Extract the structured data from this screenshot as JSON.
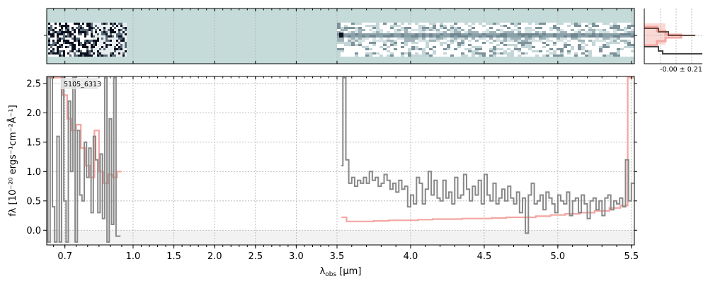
{
  "chart_data": {
    "type": "line",
    "object_label": "5105_6313",
    "xlabel": "λobs [μm]",
    "xlabel_main": "λ",
    "xlabel_sub": "obs",
    "xlabel_unit": " [μm]",
    "ylabel": "fλ [10⁻²⁰ ergs⁻¹cm⁻²Å⁻¹]",
    "xlim": [
      0.62,
      5.52
    ],
    "ylim": [
      -0.25,
      2.62
    ],
    "x_ticks": [
      {
        "value": 0.7,
        "label": "0.7"
      },
      {
        "value": 1.0,
        "label": "1.0"
      },
      {
        "value": 1.5,
        "label": "1.5"
      },
      {
        "value": 2.0,
        "label": "2.0"
      },
      {
        "value": 2.5,
        "label": "2.5"
      },
      {
        "value": 3.0,
        "label": "3.0"
      },
      {
        "value": 3.5,
        "label": "3.5"
      },
      {
        "value": 4.0,
        "label": "4.0"
      },
      {
        "value": 4.5,
        "label": "4.5"
      },
      {
        "value": 5.0,
        "label": "5.0"
      },
      {
        "value": 5.5,
        "label": "5.5"
      }
    ],
    "y_ticks": [
      {
        "value": 0.0,
        "label": "0.0"
      },
      {
        "value": 0.5,
        "label": "0.5"
      },
      {
        "value": 1.0,
        "label": "1.0"
      },
      {
        "value": 1.5,
        "label": "1.5"
      },
      {
        "value": 2.0,
        "label": "2.0"
      },
      {
        "value": 2.5,
        "label": "2.5"
      }
    ],
    "grid": true,
    "series": [
      {
        "color": "#888888",
        "style": "step",
        "segments": [
          {
            "x": [
              0.62,
              0.63,
              0.64,
              0.65,
              0.66,
              0.67,
              0.68,
              0.69,
              0.7,
              0.71,
              0.72,
              0.73,
              0.74,
              0.75,
              0.76,
              0.77,
              0.78,
              0.79,
              0.8,
              0.81,
              0.82,
              0.83,
              0.84,
              0.85,
              0.86,
              0.87,
              0.88,
              0.89,
              0.9,
              0.91,
              0.92,
              0.93,
              0.94
            ],
            "y": [
              2.6,
              -0.2,
              2.6,
              0.4,
              -0.2,
              1.6,
              -0.2,
              2.6,
              0.5,
              -0.2,
              2.2,
              1.0,
              2.6,
              -0.2,
              1.7,
              0.6,
              0.5,
              1.5,
              0.9,
              1.4,
              0.3,
              1.6,
              1.2,
              0.3,
              1.3,
              0.2,
              2.6,
              -0.2,
              1.9,
              0.1,
              2.6,
              -0.1,
              -0.1
            ]
          },
          {
            "x": [
              3.53,
              3.55,
              3.57,
              3.59,
              3.61,
              3.63,
              3.65,
              3.67,
              3.69,
              3.71,
              3.73,
              3.75,
              3.77,
              3.79,
              3.81,
              3.83,
              3.85,
              3.87,
              3.89,
              3.91,
              3.93,
              3.95,
              3.97,
              3.99,
              4.01,
              4.03,
              4.05,
              4.07,
              4.09,
              4.11,
              4.13,
              4.15,
              4.17,
              4.19,
              4.21,
              4.23,
              4.25,
              4.27,
              4.29,
              4.31,
              4.33,
              4.35,
              4.37,
              4.39,
              4.41,
              4.43,
              4.45,
              4.47,
              4.49,
              4.51,
              4.53,
              4.55,
              4.57,
              4.59,
              4.61,
              4.63,
              4.65,
              4.67,
              4.69,
              4.71,
              4.73,
              4.75,
              4.77,
              4.79,
              4.81,
              4.83,
              4.85,
              4.87,
              4.89,
              4.91,
              4.93,
              4.95,
              4.97,
              4.99,
              5.01,
              5.03,
              5.05,
              5.07,
              5.09,
              5.11,
              5.13,
              5.15,
              5.17,
              5.19,
              5.21,
              5.23,
              5.25,
              5.27,
              5.29,
              5.31,
              5.33,
              5.35,
              5.37,
              5.39,
              5.41,
              5.43,
              5.45,
              5.47,
              5.49,
              5.51
            ],
            "y": [
              1.1,
              2.6,
              1.2,
              0.8,
              0.9,
              0.75,
              0.85,
              0.8,
              0.9,
              0.8,
              1.0,
              0.85,
              0.9,
              0.75,
              0.8,
              0.95,
              0.85,
              0.7,
              0.8,
              0.65,
              0.85,
              0.7,
              0.75,
              0.4,
              0.6,
              0.45,
              0.9,
              0.8,
              0.45,
              0.7,
              1.0,
              0.6,
              0.85,
              0.55,
              0.5,
              0.85,
              0.55,
              0.65,
              0.45,
              0.9,
              0.55,
              0.6,
              0.95,
              0.7,
              0.5,
              0.75,
              0.6,
              0.85,
              0.45,
              0.95,
              0.6,
              0.5,
              0.8,
              0.45,
              0.55,
              0.7,
              0.5,
              0.75,
              0.55,
              0.45,
              0.65,
              0.3,
              0.55,
              -0.05,
              0.6,
              0.8,
              0.45,
              0.5,
              0.6,
              0.35,
              0.65,
              0.55,
              0.45,
              0.3,
              0.6,
              0.5,
              0.45,
              0.65,
              0.25,
              0.5,
              0.55,
              0.3,
              0.6,
              0.45,
              0.2,
              0.5,
              0.55,
              0.35,
              0.5,
              0.25,
              0.55,
              0.6,
              0.35,
              0.5,
              0.45,
              0.55,
              0.4,
              1.2,
              0.5,
              0.8
            ]
          }
        ]
      },
      {
        "color": "#f4a6a2",
        "style": "step",
        "segments": [
          {
            "x": [
              0.62,
              0.64,
              0.66,
              0.68,
              0.7,
              0.72,
              0.74,
              0.76,
              0.78,
              0.8,
              0.82,
              0.84,
              0.86,
              0.88,
              0.9,
              0.92,
              0.94
            ],
            "y": [
              2.6,
              2.6,
              2.6,
              2.6,
              2.3,
              1.9,
              1.7,
              1.8,
              1.4,
              1.1,
              0.9,
              1.7,
              1.0,
              0.8,
              0.95,
              0.9,
              1.0
            ]
          },
          {
            "x": [
              3.53,
              3.6,
              3.7,
              3.8,
              3.9,
              4.0,
              4.1,
              4.2,
              4.3,
              4.4,
              4.5,
              4.6,
              4.7,
              4.8,
              4.9,
              5.0,
              5.1,
              5.2,
              5.3,
              5.4,
              5.45,
              5.5,
              5.51
            ],
            "y": [
              0.22,
              0.15,
              0.15,
              0.16,
              0.17,
              0.17,
              0.18,
              0.19,
              0.19,
              0.2,
              0.2,
              0.21,
              0.22,
              0.22,
              0.24,
              0.26,
              0.28,
              0.3,
              0.33,
              0.38,
              0.42,
              2.6,
              2.6
            ]
          }
        ]
      }
    ],
    "side_panel": {
      "label": "-0.00 ± 0.21"
    }
  }
}
